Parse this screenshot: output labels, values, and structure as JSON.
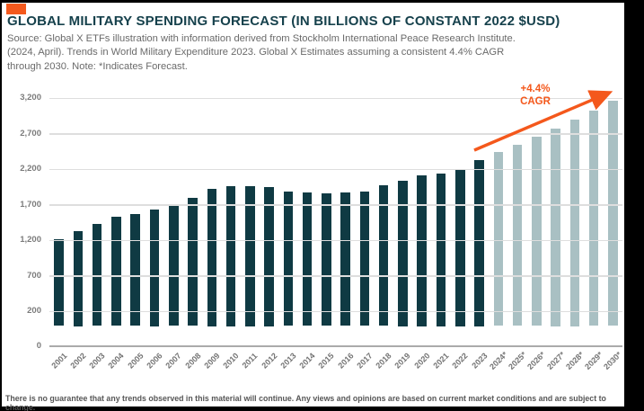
{
  "frame": {
    "background": "#000000",
    "card_background": "#FFFFFF"
  },
  "header": {
    "accent_color": "#F4591D",
    "title": "GLOBAL MILITARY SPENDING FORECAST (IN BILLIONS OF CONSTANT 2022 $USD)",
    "title_color": "#16414C",
    "source_lines": [
      "Source: Global X ETFs illustration with information derived from Stockholm International Peace Research Institute.",
      "(2024, April). Trends in World Military Expenditure 2023. Global X Estimates assuming a consistent 4.4% CAGR",
      "through 2030. Note: *Indicates Forecast."
    ]
  },
  "chart_data": {
    "type": "bar",
    "title": "GLOBAL MILITARY SPENDING FORECAST (IN BILLIONS OF CONSTANT 2022 $USD)",
    "xlabel": "",
    "ylabel": "",
    "ylim": [
      0,
      3200
    ],
    "grid": true,
    "ytick_labels": [
      "0",
      "200",
      "700",
      "1,200",
      "1,700",
      "2,200",
      "2,700",
      "3,200"
    ],
    "ytick_values": [
      0,
      200,
      700,
      1200,
      1700,
      2200,
      2700,
      3200
    ],
    "gridline_values": [
      200,
      700,
      1200,
      1700,
      2200,
      2700,
      3200
    ],
    "categories": [
      "2001",
      "2002",
      "2003",
      "2004",
      "2005",
      "2006",
      "2007",
      "2008",
      "2009",
      "2010",
      "2011",
      "2012",
      "2013",
      "2014",
      "2015",
      "2016",
      "2017",
      "2018",
      "2019",
      "2020",
      "2021",
      "2022",
      "2023",
      "2024*",
      "2025*",
      "2026*",
      "2027*",
      "2028*",
      "2029*",
      "2030*"
    ],
    "values": [
      1210,
      1320,
      1420,
      1520,
      1565,
      1630,
      1690,
      1790,
      1915,
      1950,
      1960,
      1940,
      1880,
      1860,
      1850,
      1860,
      1880,
      1970,
      2035,
      2105,
      2130,
      2200,
      2320,
      2435,
      2540,
      2655,
      2770,
      2890,
      3020,
      3150
    ],
    "forecast_start_index": 23,
    "bar_colors": {
      "actual": "#0F3A43",
      "forecast": "#A9C0C3"
    },
    "annotation": {
      "line1": "+4.4%",
      "line2": "CAGR",
      "color": "#F4581C"
    }
  },
  "footer": {
    "disclaimer": "There is no guarantee that any trends observed in this material will continue. Any views and opinions are based on current market conditions and are subject to change."
  }
}
